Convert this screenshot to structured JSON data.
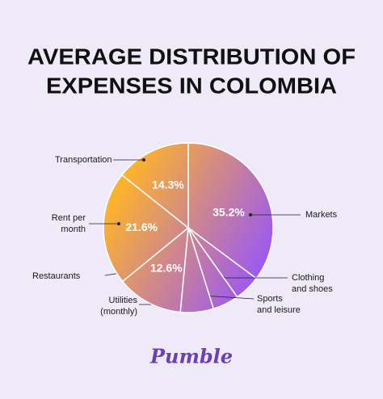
{
  "chart_data": {
    "type": "pie",
    "title": [
      "AVERAGE DISTRIBUTION OF",
      "EXPENSES IN COLOMBIA"
    ],
    "categories": [
      "Markets",
      "Clothing\nand shoes",
      "Sports\nand leisure",
      "Utilities\n(monthly)",
      "Restaurants",
      "Rent per\nmonth",
      "Transportation"
    ],
    "values": [
      35.2,
      5,
      5,
      6.3,
      12.6,
      21.6,
      14.3
    ],
    "value_labels": [
      "35.2%",
      null,
      null,
      null,
      "12.6%",
      "21.6%",
      "14.3%"
    ],
    "gradient": [
      "#fdb22e",
      "#9a58f5"
    ],
    "logo": "Pumble"
  }
}
